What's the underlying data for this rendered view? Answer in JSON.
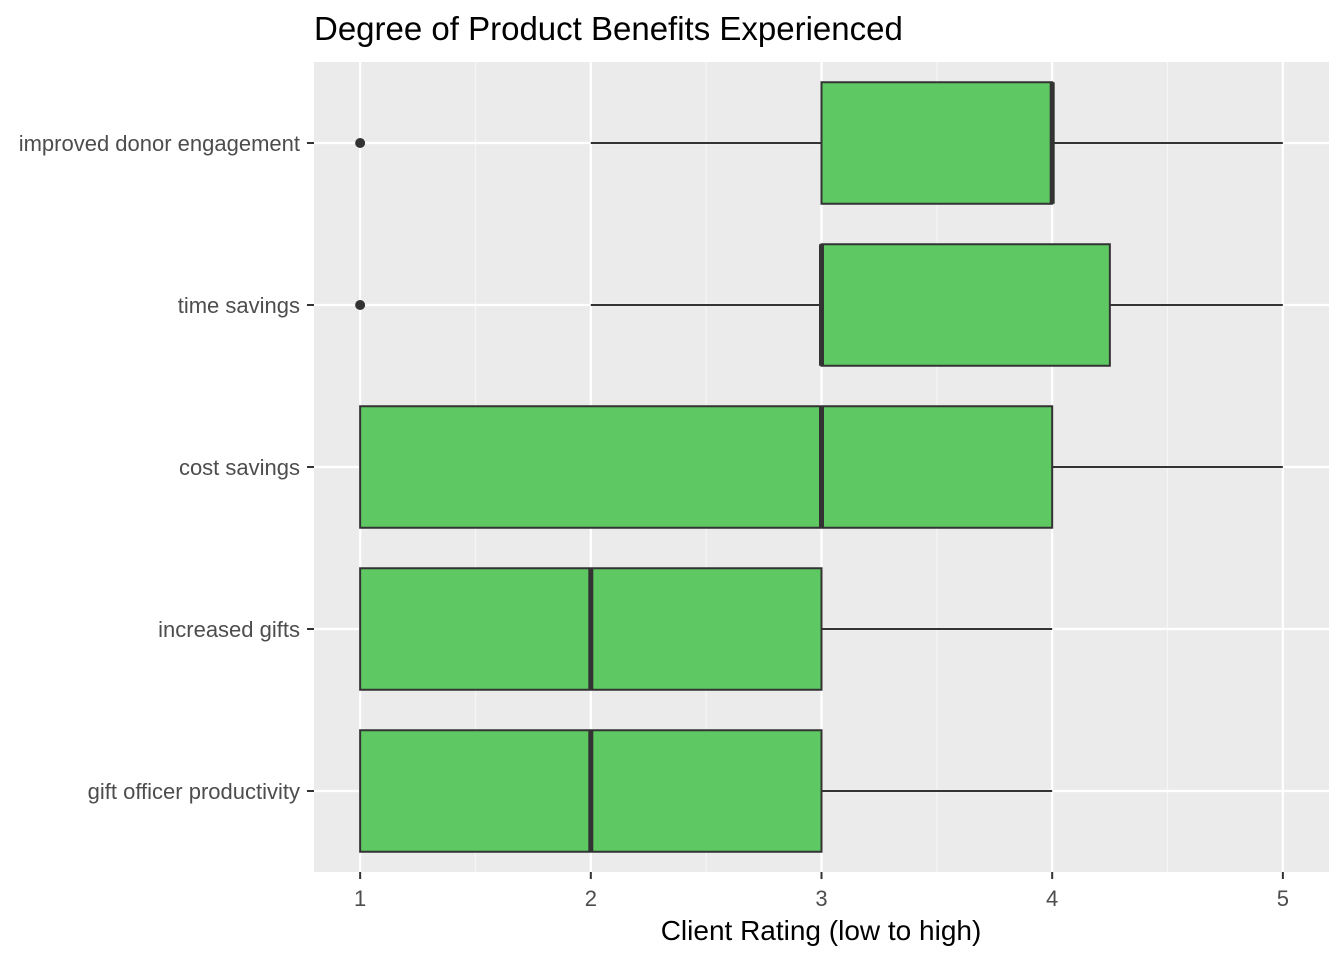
{
  "chart_data": {
    "type": "boxplot",
    "orientation": "horizontal",
    "title": "Degree of Product Benefits Experienced",
    "xlabel": "Client Rating (low to high)",
    "ylabel": "",
    "xlim": [
      0.8,
      5.2
    ],
    "x_ticks": [
      1,
      2,
      3,
      4,
      5
    ],
    "x_tick_labels": [
      "1",
      "2",
      "3",
      "4",
      "5"
    ],
    "grid": true,
    "legend": "none",
    "colors": {
      "box_fill": "#5ec962",
      "box_stroke": "#333333",
      "panel_background": "#ebebeb",
      "grid_major": "#ffffff",
      "axis_text": "#4d4d4d",
      "title_text": "#000000"
    },
    "categories": [
      "improved donor engagement",
      "time savings",
      "cost savings",
      "increased gifts",
      "gift officer productivity"
    ],
    "boxes": [
      {
        "category": "improved donor engagement",
        "whisker_low": 2,
        "q1": 3,
        "median": 4,
        "q3": 4,
        "whisker_high": 5,
        "outliers": [
          1
        ]
      },
      {
        "category": "time savings",
        "whisker_low": 2,
        "q1": 3,
        "median": 3,
        "q3": 4.25,
        "whisker_high": 5,
        "outliers": [
          1
        ]
      },
      {
        "category": "cost savings",
        "whisker_low": 1,
        "q1": 1,
        "median": 3,
        "q3": 4,
        "whisker_high": 5,
        "outliers": []
      },
      {
        "category": "increased gifts",
        "whisker_low": 1,
        "q1": 1,
        "median": 2,
        "q3": 3,
        "whisker_high": 4,
        "outliers": []
      },
      {
        "category": "gift officer productivity",
        "whisker_low": 1,
        "q1": 1,
        "median": 2,
        "q3": 3,
        "whisker_high": 4,
        "outliers": []
      }
    ]
  }
}
